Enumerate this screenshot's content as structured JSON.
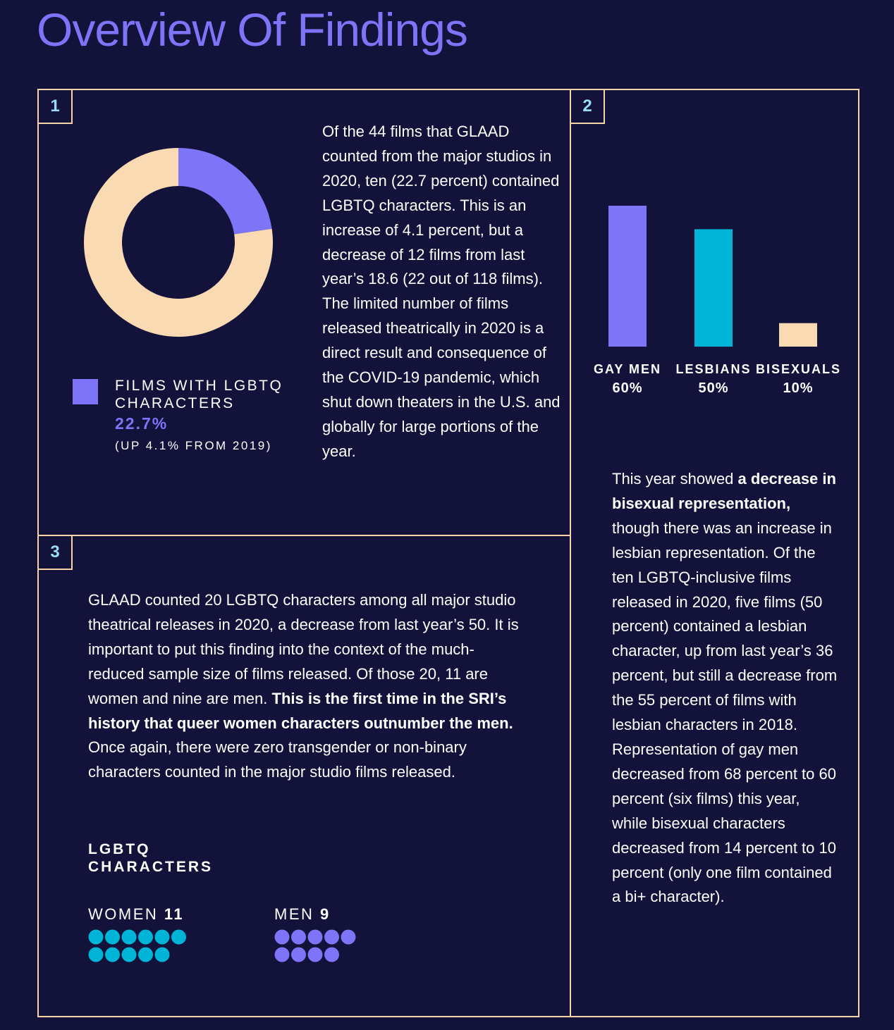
{
  "title": "Overview Of Findings",
  "colors": {
    "background": "#13123a",
    "border": "#f5d4a8",
    "accent_purple": "#7d74f7",
    "accent_cyan": "#00b4d8",
    "accent_peach": "#f9dab2"
  },
  "panel1": {
    "number": "1",
    "legend_label": "FILMS WITH LGBTQ CHARACTERS",
    "legend_value": "22.7%",
    "legend_note": "(UP 4.1% FROM 2019)",
    "text": "Of the 44 films that GLAAD counted from the major studios in 2020, ten (22.7 percent) contained LGBTQ characters. This is an increase of 4.1 percent, but a decrease of 12 films from last year’s 18.6 (22 out of 118 films). The limited number of films released theatrically in 2020 is a direct result and consequence of the COVID-19 pandemic, which shut down theaters in the U.S. and globally for large portions of the year."
  },
  "panel2": {
    "number": "2",
    "text_pre": "This year showed ",
    "text_bold": "a decrease in bisexual representation,",
    "text_post": " though there was an increase in lesbian representation. Of the ten LGBTQ-inclusive films released in 2020, five films (50 percent) contained a lesbian character, up from last year’s 36 percent, but still a decrease from the 55 percent of films with lesbian characters in 2018. Representation of gay men decreased from 68 percent to 60 percent (six films) this year, while bisexual characters decreased from 14 percent to 10 percent (only one film contained a bi+ character)."
  },
  "panel3": {
    "number": "3",
    "text_pre": "GLAAD counted 20 LGBTQ characters among all major studio theatrical releases in 2020, a decrease from last year’s 50. It is important to put this finding into the context of the much-reduced sample size of films released. Of those 20, 11 are women and nine are men. ",
    "text_bold": "This is the first time in the SRI’s history that queer women characters outnumber the men.",
    "text_post": " Once again, there were zero transgender or non-binary characters counted in the major studio films released.",
    "heading": "LGBTQ CHARACTERS",
    "women_label": "WOMEN",
    "women_count": "11",
    "men_label": "MEN",
    "men_count": "9"
  },
  "chart_data": [
    {
      "type": "pie",
      "donut": true,
      "slices": [
        {
          "label": "FILMS WITH LGBTQ CHARACTERS",
          "value": 22.7,
          "color": "#7d74f7"
        },
        {
          "label": "",
          "value": 77.3,
          "color": "#f9dab2"
        }
      ]
    },
    {
      "type": "bar",
      "categories": [
        "GAY MEN",
        "LESBIANS",
        "BISEXUALS"
      ],
      "values": [
        60,
        50,
        10
      ],
      "value_labels": [
        "60%",
        "50%",
        "10%"
      ],
      "colors": [
        "#7d74f7",
        "#00b4d8",
        "#f9dab2"
      ]
    },
    {
      "type": "pictogram",
      "categories": [
        "WOMEN",
        "MEN"
      ],
      "values": [
        11,
        9
      ],
      "colors": [
        "#00b4d8",
        "#7d74f7"
      ]
    }
  ]
}
